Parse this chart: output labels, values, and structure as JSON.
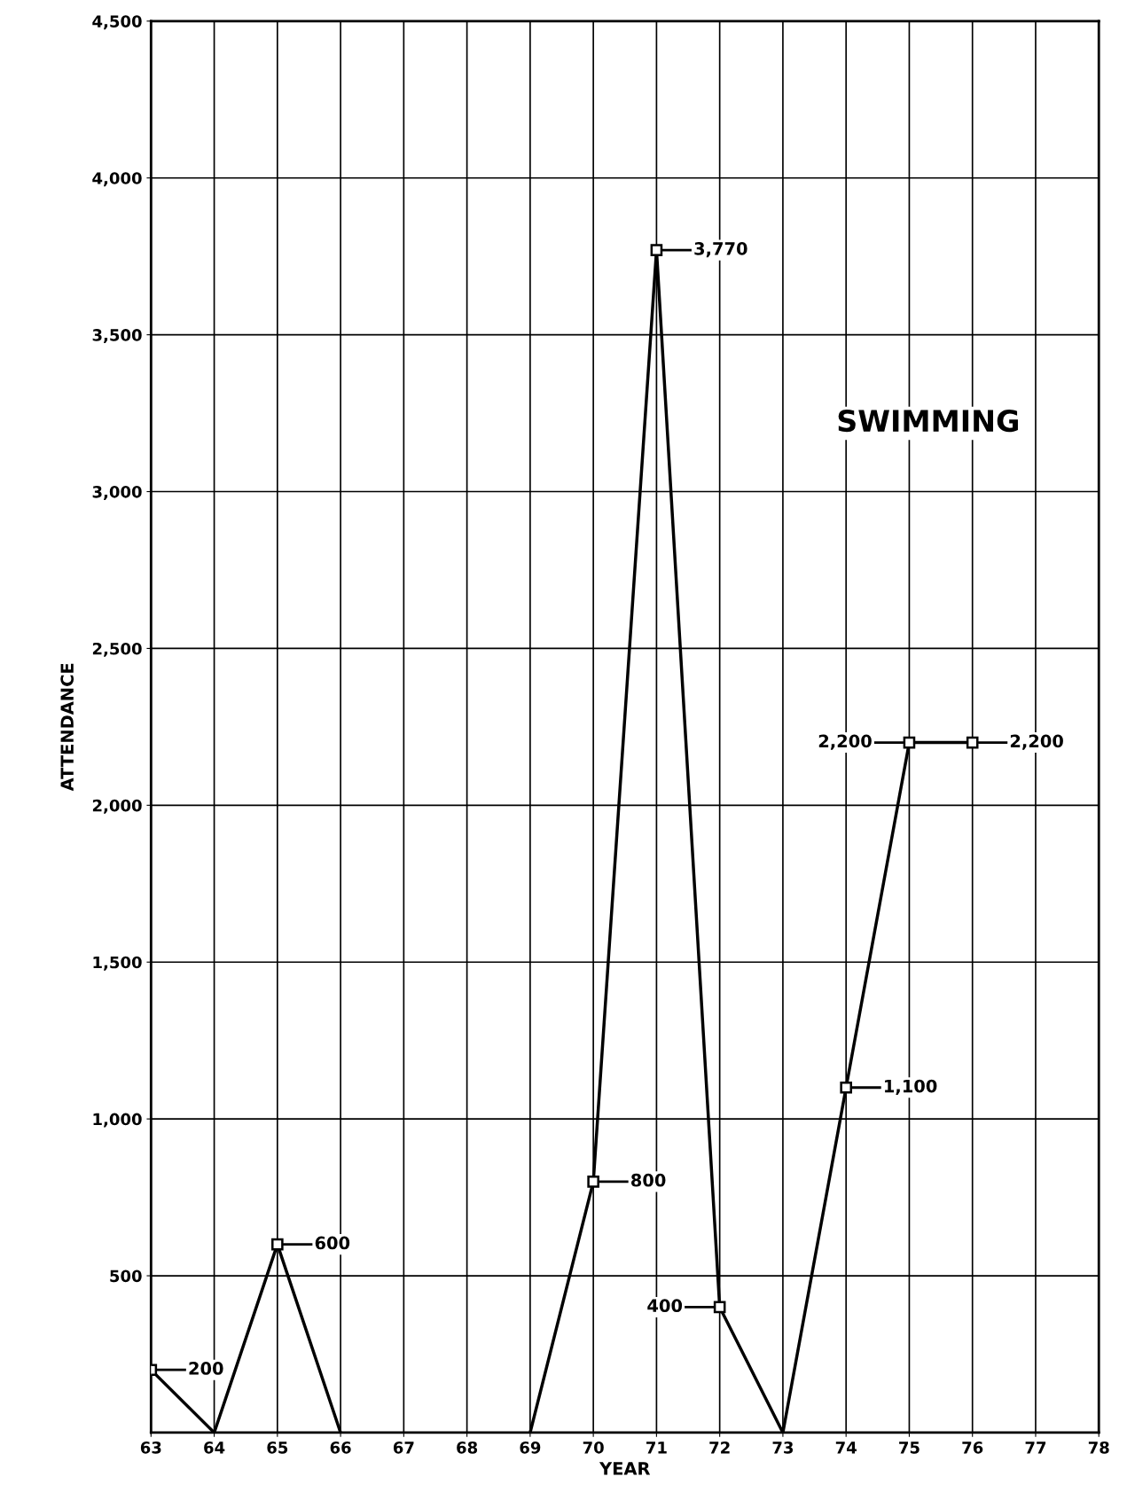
{
  "chart_data": {
    "type": "line",
    "title": "SWIMMING",
    "xlabel": "YEAR",
    "ylabel": "ATTENDANCE",
    "categories": [
      "63",
      "64",
      "65",
      "66",
      "67",
      "68",
      "69",
      "70",
      "71",
      "72",
      "73",
      "74",
      "75",
      "76",
      "77",
      "78"
    ],
    "series": [
      {
        "color": "#000000",
        "values": [
          200,
          0,
          600,
          0,
          null,
          null,
          0,
          800,
          3770,
          400,
          0,
          1100,
          2200,
          2200,
          null,
          null
        ],
        "value_labels": [
          "200",
          null,
          "600",
          null,
          null,
          null,
          null,
          "800",
          "3,770",
          "400",
          null,
          "1,100",
          "2,200",
          "2,200",
          null,
          null
        ]
      }
    ],
    "ylim": [
      0,
      4500
    ],
    "yticks": [
      {
        "value": 500,
        "label": "500"
      },
      {
        "value": 1000,
        "label": "1,000"
      },
      {
        "value": 1500,
        "label": "1,500"
      },
      {
        "value": 2000,
        "label": "2,000"
      },
      {
        "value": 2500,
        "label": "2,500"
      },
      {
        "value": 3000,
        "label": "3,000"
      },
      {
        "value": 3500,
        "label": "3,500"
      },
      {
        "value": 4000,
        "label": "4,000"
      },
      {
        "value": 4500,
        "label": "4,500"
      }
    ],
    "grid": true,
    "marker": "square",
    "line_style": "solid"
  }
}
